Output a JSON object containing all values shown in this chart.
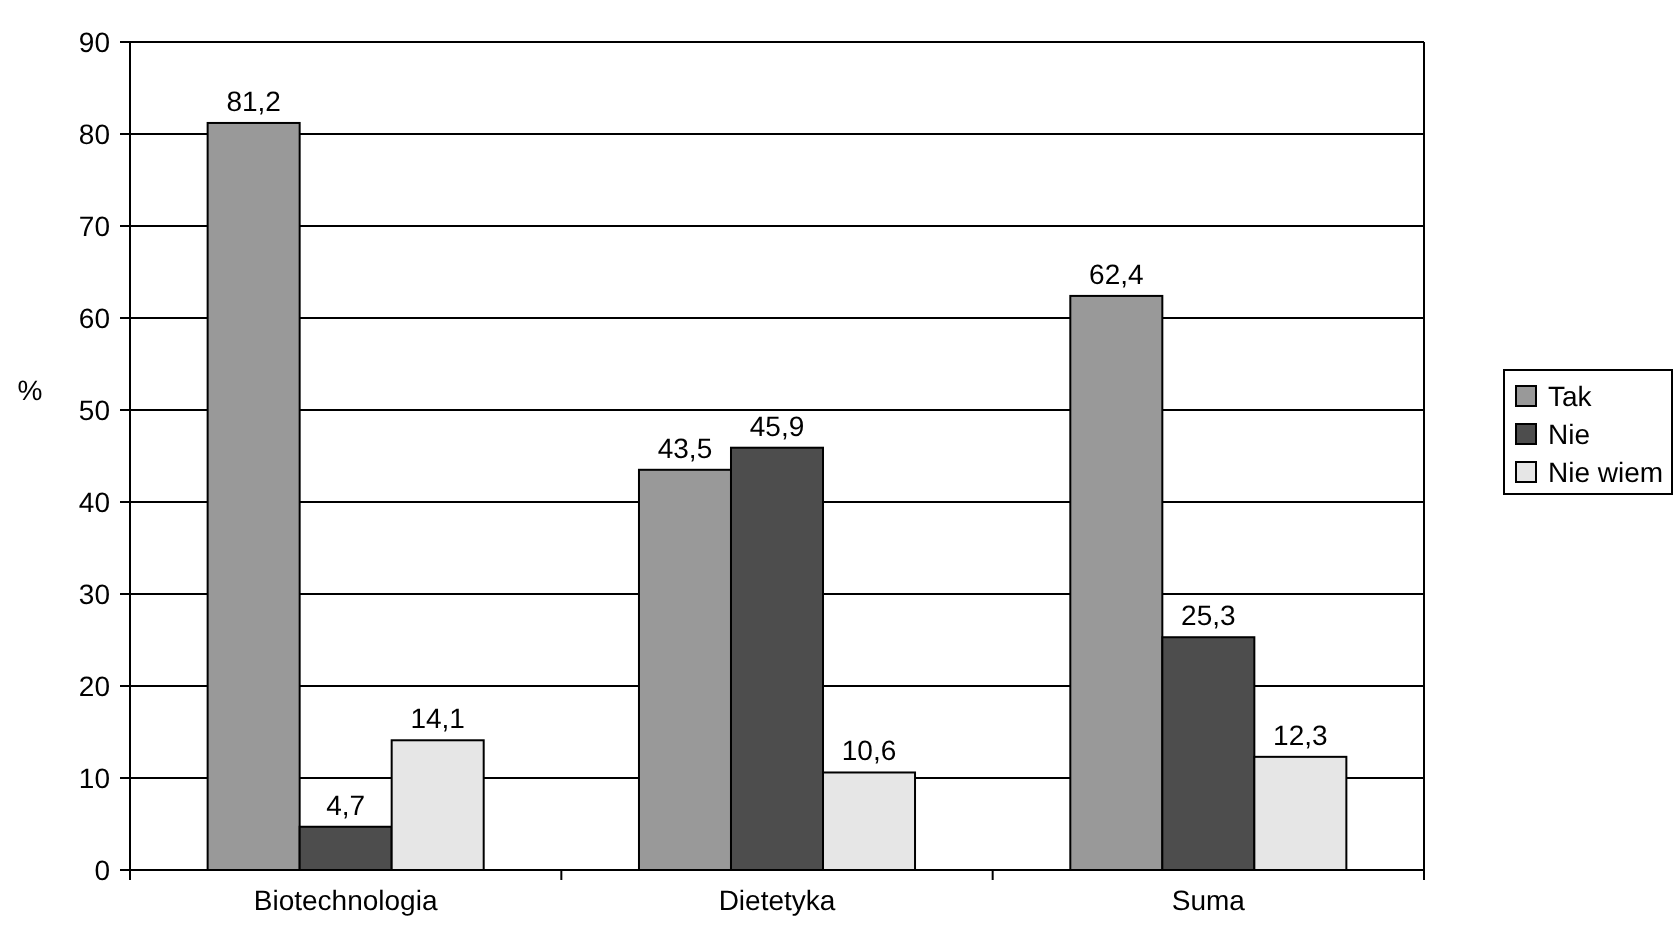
{
  "chart_data": {
    "type": "bar",
    "ylabel": "%",
    "categories": [
      "Biotechnologia",
      "Dietetyka",
      "Suma"
    ],
    "series": [
      {
        "name": "Tak",
        "color": "#999999",
        "values": [
          81.2,
          43.5,
          62.4
        ],
        "value_labels": [
          "81,2",
          "43,5",
          "62,4"
        ]
      },
      {
        "name": "Nie",
        "color": "#4d4d4d",
        "values": [
          4.7,
          45.9,
          25.3
        ],
        "value_labels": [
          "4,7",
          "45,9",
          "25,3"
        ]
      },
      {
        "name": "Nie wiem",
        "color": "#e6e6e6",
        "values": [
          14.1,
          10.6,
          12.3
        ],
        "value_labels": [
          "14,1",
          "10,6",
          "12,3"
        ]
      }
    ],
    "ylim": [
      0,
      90
    ],
    "yticks": [
      0,
      10,
      20,
      30,
      40,
      50,
      60,
      70,
      80,
      90
    ],
    "grid": "y",
    "legend": "right"
  }
}
